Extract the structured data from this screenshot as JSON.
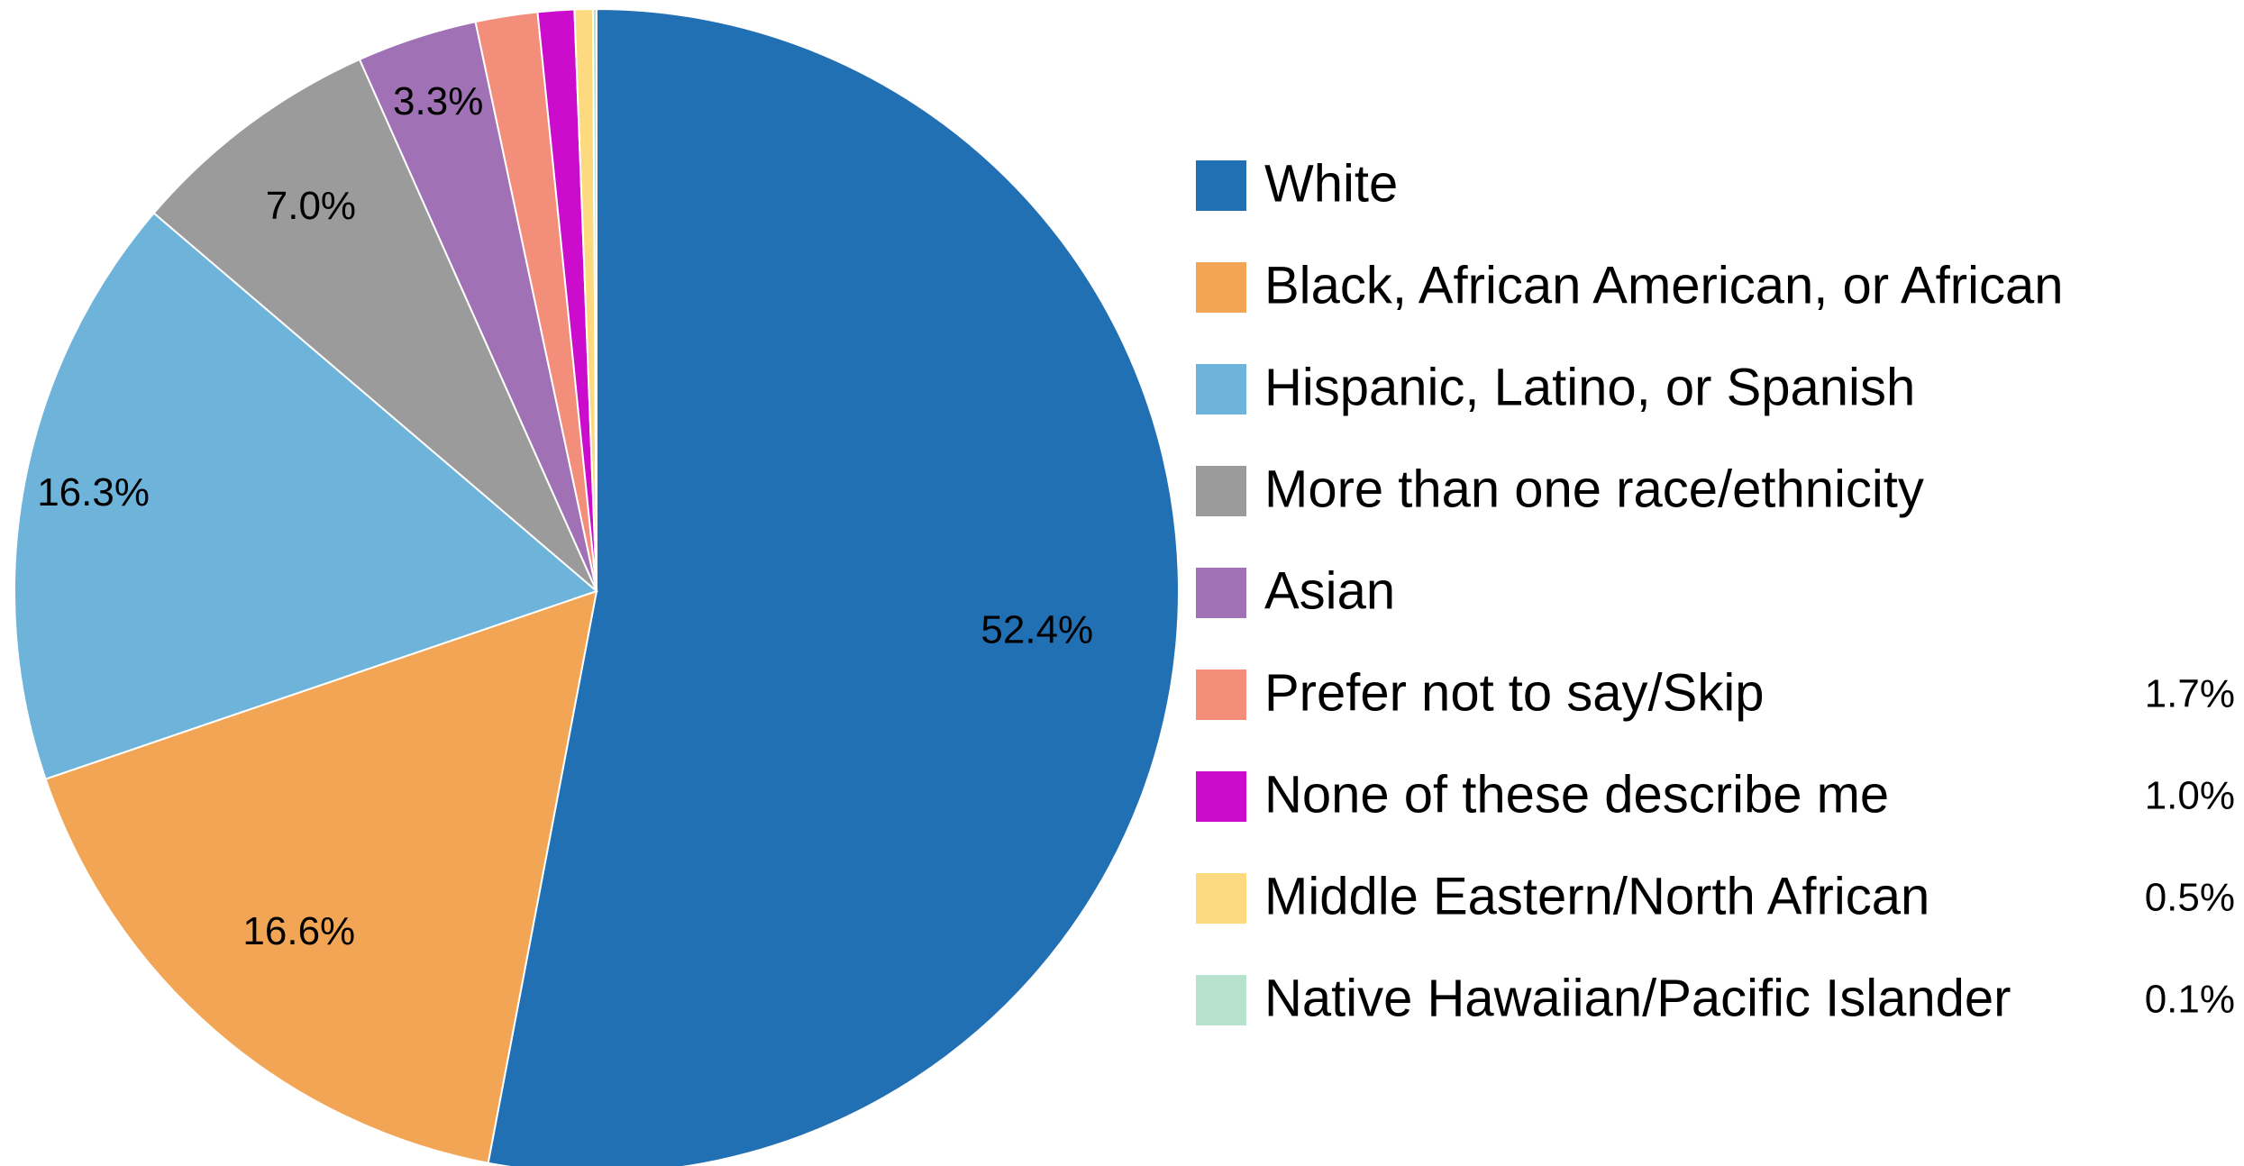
{
  "chart_data": {
    "type": "pie",
    "title": "",
    "start_angle_deg": 0,
    "direction": "clockwise",
    "categories": [
      "White",
      "Black, African American, or African",
      "Hispanic, Latino, or Spanish",
      "More than one race/ethnicity",
      "Asian",
      "Prefer not to say/Skip",
      "None of these describe me",
      "Middle Eastern/North African",
      "Native Hawaiian/Pacific Islander"
    ],
    "values": [
      52.4,
      16.6,
      16.3,
      7.0,
      3.3,
      1.7,
      1.0,
      0.5,
      0.1
    ],
    "value_labels": [
      "52.4%",
      "16.6%",
      "16.3%",
      "7.0%",
      "3.3%",
      "1.7%",
      "1.0%",
      "0.5%",
      "0.1%"
    ],
    "label_placement": [
      "on-slice",
      "on-slice",
      "on-slice",
      "on-slice",
      "on-slice",
      "legend",
      "legend",
      "legend",
      "legend"
    ],
    "colors": [
      "#2270b4",
      "#f2a655",
      "#6db3da",
      "#9b9b9b",
      "#a072b5",
      "#f38e7b",
      "#cc0ccd",
      "#fdd980",
      "#b7e2cd"
    ],
    "label_colors": [
      "#ffffff",
      "#000000",
      "#000000",
      "#000000",
      "#000000",
      "#000000",
      "#000000",
      "#000000",
      "#000000"
    ],
    "legend": {
      "position": "right"
    }
  }
}
